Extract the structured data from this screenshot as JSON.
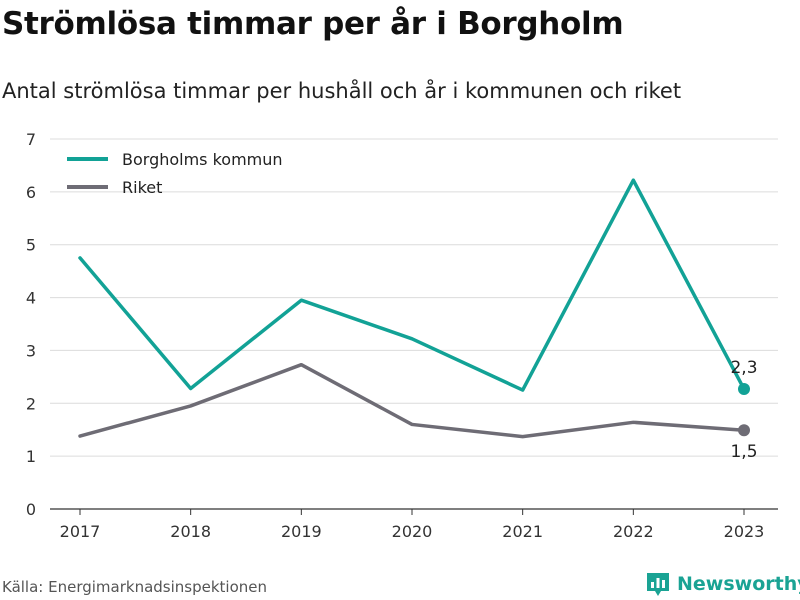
{
  "title": "Strömlösa timmar per år i Borgholm",
  "subtitle": "Antal strömlösa timmar per hushåll och år i kommunen och riket",
  "source": "Källa: Energimarknadsinspektionen",
  "brand": {
    "name": "Newsworthy",
    "icon": "newsworthy-logo-icon",
    "color": "#1aa394"
  },
  "chart_data": {
    "type": "line",
    "x": [
      "2017",
      "2018",
      "2019",
      "2020",
      "2021",
      "2022",
      "2023"
    ],
    "ylim": [
      0,
      7
    ],
    "yticks": [
      "0",
      "1",
      "2",
      "3",
      "4",
      "5",
      "6",
      "7"
    ],
    "grid": true,
    "legend_position": "top-left",
    "series": [
      {
        "name": "Borgholms kommun",
        "color": "#12a296",
        "values": [
          4.75,
          2.28,
          3.95,
          3.22,
          2.25,
          6.22,
          2.27
        ],
        "end_label": "2,3"
      },
      {
        "name": "Riket",
        "color": "#6e6c75",
        "values": [
          1.38,
          1.95,
          2.73,
          1.6,
          1.37,
          1.64,
          1.49
        ],
        "end_label": "1,5"
      }
    ]
  }
}
